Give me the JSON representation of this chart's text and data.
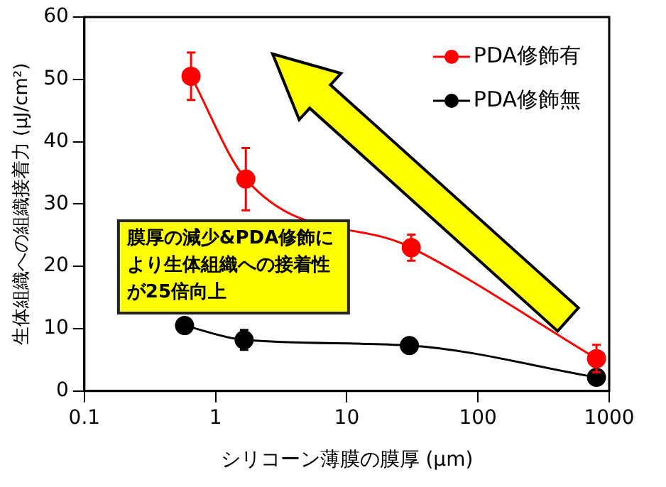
{
  "chart_data": {
    "type": "line",
    "xlabel": "シリコーン薄膜の膜厚 (μm)",
    "ylabel": "生体組織への組織接着力 (μJ/cm²)",
    "xlim": [
      0.1,
      1000
    ],
    "xticks": [
      0.1,
      1,
      10,
      100,
      1000
    ],
    "ylim": [
      0,
      60
    ],
    "yticks": [
      0,
      10,
      20,
      30,
      40,
      50,
      60
    ],
    "log": "x",
    "grid": false,
    "legend": "top right",
    "marker": "circle",
    "annotations": [
      "膜厚の減少&PDA修飾により生体組織への接着性が25倍向上"
    ],
    "series": [
      {
        "name": "PDA修飾有",
        "color": "#ff0000",
        "x": [
          0.65,
          1.7,
          31,
          800
        ],
        "values": [
          50.5,
          34,
          23,
          5.2
        ],
        "errors": [
          3.8,
          5,
          2.1,
          2.2
        ]
      },
      {
        "name": "PDA修飾無",
        "color": "#000000",
        "x": [
          0.58,
          1.65,
          30,
          800
        ],
        "values": [
          10.5,
          8.2,
          7.3,
          2.2
        ],
        "errors": [
          null,
          1.6,
          null,
          null
        ]
      }
    ]
  }
}
